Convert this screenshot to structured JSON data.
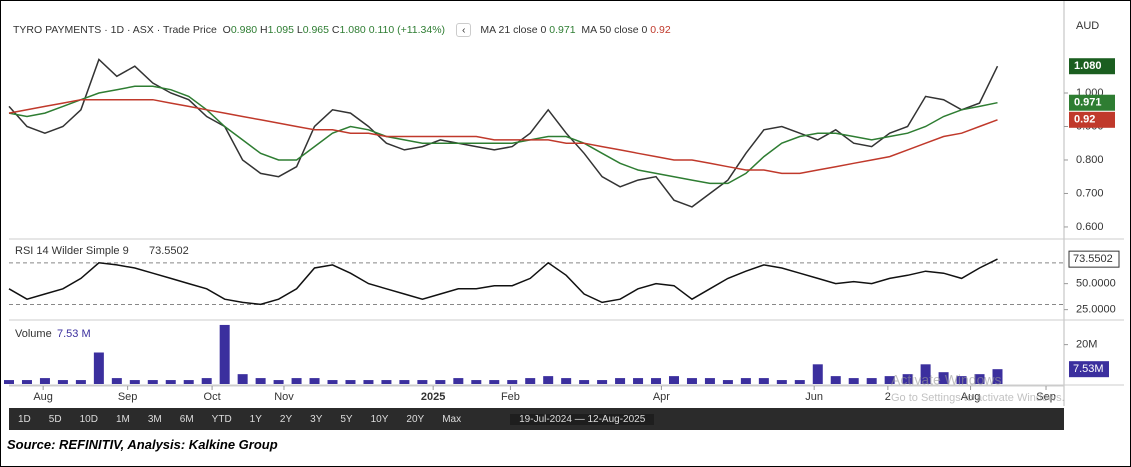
{
  "header": {
    "symbol": "TYRO PAYMENTS · 1D · ASX · Trade Price",
    "open_key": "O",
    "open": "0.980",
    "high_key": "H",
    "high": "1.095",
    "low_key": "L",
    "low": "0.965",
    "close_key": "C",
    "close": "1.080",
    "change": "0.110 (+11.34%)",
    "ma21_name": "MA 21 close 0",
    "ma50_name": "MA 50 close 0",
    "currency": "AUD"
  },
  "chart_data": [
    {
      "type": "line",
      "xlim": [
        0,
        58.7
      ],
      "ylim": [
        0.567,
        1.23
      ],
      "yticks": [
        {
          "value": 0.6,
          "label": "0.600"
        },
        {
          "value": 0.7,
          "label": "0.700"
        },
        {
          "value": 0.8,
          "label": "0.800"
        },
        {
          "value": 0.9,
          "label": "0.900"
        },
        {
          "value": 1.0,
          "label": "1.000"
        }
      ],
      "x": [
        0,
        1,
        2,
        3,
        4,
        5,
        6,
        7,
        8,
        9,
        10,
        11,
        12,
        13,
        14,
        15,
        16,
        17,
        18,
        19,
        20,
        21,
        22,
        23,
        24,
        25,
        26,
        27,
        28,
        29,
        30,
        31,
        32,
        33,
        34,
        35,
        36,
        37,
        38,
        39,
        40,
        41,
        42,
        43,
        44,
        45,
        46,
        47,
        48,
        49,
        50,
        51,
        52,
        53,
        54,
        55
      ],
      "series": [
        {
          "name": "Trade Price",
          "color": "#333333",
          "values": [
            0.96,
            0.9,
            0.88,
            0.9,
            0.95,
            1.1,
            1.05,
            1.08,
            1.03,
            1.0,
            0.98,
            0.93,
            0.9,
            0.8,
            0.76,
            0.75,
            0.78,
            0.9,
            0.95,
            0.94,
            0.9,
            0.85,
            0.83,
            0.84,
            0.86,
            0.85,
            0.84,
            0.83,
            0.84,
            0.88,
            0.95,
            0.88,
            0.82,
            0.75,
            0.72,
            0.74,
            0.75,
            0.68,
            0.66,
            0.7,
            0.74,
            0.82,
            0.89,
            0.9,
            0.88,
            0.86,
            0.89,
            0.85,
            0.84,
            0.88,
            0.9,
            0.99,
            0.98,
            0.95,
            0.97,
            1.08
          ]
        },
        {
          "name": "MA 21",
          "color": "#2e7d32",
          "values": [
            0.94,
            0.93,
            0.94,
            0.96,
            0.98,
            1.0,
            1.01,
            1.02,
            1.02,
            1.01,
            0.99,
            0.95,
            0.9,
            0.86,
            0.82,
            0.8,
            0.8,
            0.84,
            0.88,
            0.9,
            0.89,
            0.87,
            0.86,
            0.85,
            0.85,
            0.85,
            0.85,
            0.85,
            0.85,
            0.86,
            0.87,
            0.87,
            0.85,
            0.82,
            0.79,
            0.77,
            0.76,
            0.75,
            0.74,
            0.73,
            0.73,
            0.76,
            0.81,
            0.85,
            0.87,
            0.88,
            0.88,
            0.87,
            0.86,
            0.87,
            0.88,
            0.9,
            0.93,
            0.95,
            0.96,
            0.971
          ]
        },
        {
          "name": "MA 50",
          "color": "#c0392b",
          "values": [
            0.94,
            0.95,
            0.96,
            0.97,
            0.98,
            0.98,
            0.98,
            0.98,
            0.98,
            0.97,
            0.96,
            0.95,
            0.94,
            0.93,
            0.92,
            0.91,
            0.9,
            0.89,
            0.89,
            0.88,
            0.88,
            0.87,
            0.87,
            0.87,
            0.87,
            0.87,
            0.87,
            0.86,
            0.86,
            0.86,
            0.86,
            0.85,
            0.85,
            0.84,
            0.83,
            0.82,
            0.81,
            0.8,
            0.8,
            0.79,
            0.78,
            0.77,
            0.77,
            0.76,
            0.76,
            0.77,
            0.78,
            0.79,
            0.8,
            0.81,
            0.83,
            0.85,
            0.87,
            0.88,
            0.9,
            0.92
          ]
        }
      ]
    },
    {
      "type": "line",
      "title": "RSI 14 Wilder Simple 9",
      "ylim": [
        16,
        91
      ],
      "bands": [
        30,
        70
      ],
      "yticks": [
        {
          "value": 25,
          "label": "25.0000"
        },
        {
          "value": 50,
          "label": "50.0000"
        }
      ],
      "series": [
        {
          "name": "RSI",
          "color": "#111111",
          "values": [
            45,
            35,
            40,
            45,
            55,
            70,
            68,
            65,
            60,
            55,
            50,
            45,
            35,
            32,
            30,
            35,
            45,
            65,
            68,
            60,
            50,
            45,
            40,
            35,
            40,
            45,
            45,
            48,
            48,
            55,
            70,
            58,
            40,
            32,
            35,
            45,
            50,
            48,
            35,
            45,
            55,
            62,
            68,
            65,
            60,
            55,
            50,
            52,
            50,
            55,
            58,
            62,
            60,
            55,
            65,
            73.5502
          ]
        }
      ]
    },
    {
      "type": "bar",
      "title": "Volume",
      "current": "7.53 M",
      "current_badge": "7.53M",
      "ylim": [
        0,
        32
      ],
      "yticks": [
        {
          "value": 20,
          "label": "20M"
        }
      ],
      "color": "#3b2f9e",
      "values": [
        2,
        2,
        3,
        2,
        2,
        16,
        3,
        2,
        2,
        2,
        2,
        3,
        30,
        5,
        3,
        2,
        3,
        3,
        2,
        2,
        2,
        2,
        2,
        2,
        2,
        3,
        2,
        2,
        2,
        3,
        4,
        3,
        2,
        2,
        3,
        3,
        3,
        4,
        3,
        3,
        2,
        3,
        3,
        2,
        2,
        10,
        4,
        3,
        3,
        4,
        5,
        10,
        6,
        4,
        5,
        7.53
      ],
      "xticks": [
        {
          "value": 1.9,
          "label": "Aug"
        },
        {
          "value": 6.6,
          "label": "Sep"
        },
        {
          "value": 11.3,
          "label": "Oct"
        },
        {
          "value": 15.3,
          "label": "Nov"
        },
        {
          "value": 23.6,
          "label": "2025"
        },
        {
          "value": 27.9,
          "label": "Feb"
        },
        {
          "value": 36.3,
          "label": "Apr"
        },
        {
          "value": 44.8,
          "label": "Jun"
        },
        {
          "value": 48.9,
          "label": "2"
        },
        {
          "value": 53.5,
          "label": "Aug"
        },
        {
          "value": 57.7,
          "label": "Sep"
        }
      ]
    }
  ],
  "toolbar": {
    "buttons": [
      "1D",
      "5D",
      "10D",
      "1M",
      "3M",
      "6M",
      "YTD",
      "1Y",
      "2Y",
      "3Y",
      "5Y",
      "10Y",
      "20Y",
      "Max"
    ],
    "range": "19-Jul-2024  —  12-Aug-2025"
  },
  "watermark": [
    "Activate Windows",
    "Go to Settings to activate Windows."
  ],
  "source": "Source: REFINITIV, Analysis: Kalkine Group"
}
